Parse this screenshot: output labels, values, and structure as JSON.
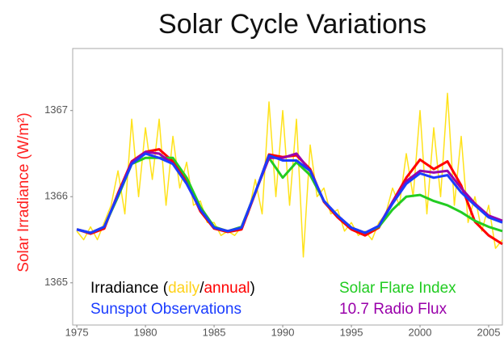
{
  "chart_data": {
    "type": "line",
    "title": "Solar Cycle Variations",
    "y_label": "Solar Irradiance (W/m²)",
    "x": [
      1975,
      1976,
      1977,
      1978,
      1979,
      1980,
      1981,
      1982,
      1983,
      1984,
      1985,
      1986,
      1987,
      1988,
      1989,
      1990,
      1991,
      1992,
      1993,
      1994,
      1995,
      1996,
      1997,
      1998,
      1999,
      2000,
      2001,
      2002,
      2003,
      2004,
      2005,
      2006
    ],
    "legend": {
      "irradiance_prefix": "Irradiance (",
      "separator": "/",
      "suffix": ")"
    },
    "series": [
      {
        "name": "daily",
        "color": "#ffe21a",
        "x": [
          1975,
          1975.5,
          1976,
          1976.5,
          1977,
          1977.5,
          1978,
          1978.5,
          1979,
          1979.5,
          1980,
          1980.5,
          1981,
          1981.5,
          1982,
          1982.5,
          1983,
          1983.5,
          1984,
          1984.5,
          1985,
          1985.5,
          1986,
          1986.5,
          1987,
          1987.5,
          1988,
          1988.5,
          1989,
          1989.5,
          1990,
          1990.5,
          1991,
          1991.5,
          1992,
          1992.5,
          1993,
          1993.5,
          1994,
          1994.5,
          1995,
          1995.5,
          1996,
          1996.5,
          1997,
          1997.5,
          1998,
          1998.5,
          1999,
          1999.5,
          2000,
          2000.5,
          2001,
          2001.5,
          2002,
          2002.5,
          2003,
          2003.5,
          2004,
          2004.5,
          2005,
          2005.5,
          2006
        ],
        "values": [
          1365.6,
          1365.5,
          1365.65,
          1365.5,
          1365.7,
          1365.9,
          1366.3,
          1365.8,
          1366.9,
          1366.0,
          1366.8,
          1366.2,
          1366.9,
          1365.9,
          1366.7,
          1366.1,
          1366.4,
          1365.9,
          1365.95,
          1365.7,
          1365.7,
          1365.55,
          1365.6,
          1365.55,
          1365.65,
          1365.8,
          1366.2,
          1365.8,
          1367.1,
          1366.0,
          1367.0,
          1365.9,
          1366.9,
          1365.3,
          1366.6,
          1366.0,
          1366.1,
          1365.8,
          1365.85,
          1365.6,
          1365.7,
          1365.55,
          1365.6,
          1365.5,
          1365.7,
          1365.8,
          1366.1,
          1365.9,
          1366.5,
          1366.0,
          1367.0,
          1365.8,
          1366.8,
          1366.0,
          1367.2,
          1365.9,
          1366.7,
          1365.7,
          1366.0,
          1365.6,
          1365.9,
          1365.4,
          1365.5
        ]
      },
      {
        "name": "annual",
        "color": "#ff0000",
        "values": [
          1365.62,
          1365.57,
          1365.63,
          1366.04,
          1366.41,
          1366.52,
          1366.55,
          1366.41,
          1366.18,
          1365.83,
          1365.63,
          1365.59,
          1365.62,
          1366.04,
          1366.49,
          1366.46,
          1366.48,
          1366.32,
          1365.94,
          1365.76,
          1365.62,
          1365.55,
          1365.64,
          1365.94,
          1366.22,
          1366.43,
          1366.32,
          1366.41,
          1366.13,
          1365.71,
          1365.55,
          1365.45
        ]
      },
      {
        "name": "Solar Flare Index",
        "color": "#22cc22",
        "values": [
          1365.62,
          1365.58,
          1365.65,
          1366.0,
          1366.38,
          1366.45,
          1366.45,
          1366.45,
          1366.22,
          1365.88,
          1365.65,
          1365.6,
          1365.65,
          1366.05,
          1366.45,
          1366.22,
          1366.4,
          1366.25,
          1365.95,
          1365.78,
          1365.64,
          1365.58,
          1365.65,
          1365.85,
          1366.0,
          1366.02,
          1365.95,
          1365.9,
          1365.82,
          1365.72,
          1365.65,
          1365.6
        ]
      },
      {
        "name": "10.7 Radio Flux",
        "color": "#9900aa",
        "values": [
          1365.62,
          1365.58,
          1365.65,
          1366.02,
          1366.4,
          1366.52,
          1366.5,
          1366.38,
          1366.15,
          1365.85,
          1365.64,
          1365.6,
          1365.64,
          1366.05,
          1366.45,
          1366.45,
          1366.5,
          1366.3,
          1365.95,
          1365.78,
          1365.64,
          1365.58,
          1365.66,
          1365.94,
          1366.18,
          1366.3,
          1366.28,
          1366.3,
          1366.1,
          1365.92,
          1365.78,
          1365.72
        ]
      },
      {
        "name": "Sunspot Observations",
        "color": "#1a3cff",
        "values": [
          1365.62,
          1365.58,
          1365.65,
          1366.02,
          1366.38,
          1366.5,
          1366.45,
          1366.38,
          1366.15,
          1365.85,
          1365.64,
          1365.6,
          1365.64,
          1366.05,
          1366.48,
          1366.42,
          1366.42,
          1366.3,
          1365.95,
          1365.78,
          1365.64,
          1365.58,
          1365.66,
          1365.92,
          1366.15,
          1366.27,
          1366.22,
          1366.25,
          1366.05,
          1365.9,
          1365.76,
          1365.7
        ]
      }
    ],
    "xlim": [
      1974.7,
      2006
    ],
    "ylim": [
      1364.51,
      1367.72
    ],
    "xticks": [
      1975,
      1980,
      1985,
      1990,
      1995,
      2000,
      2005
    ],
    "yticks": [
      1365,
      1366,
      1367
    ],
    "grid": false
  }
}
